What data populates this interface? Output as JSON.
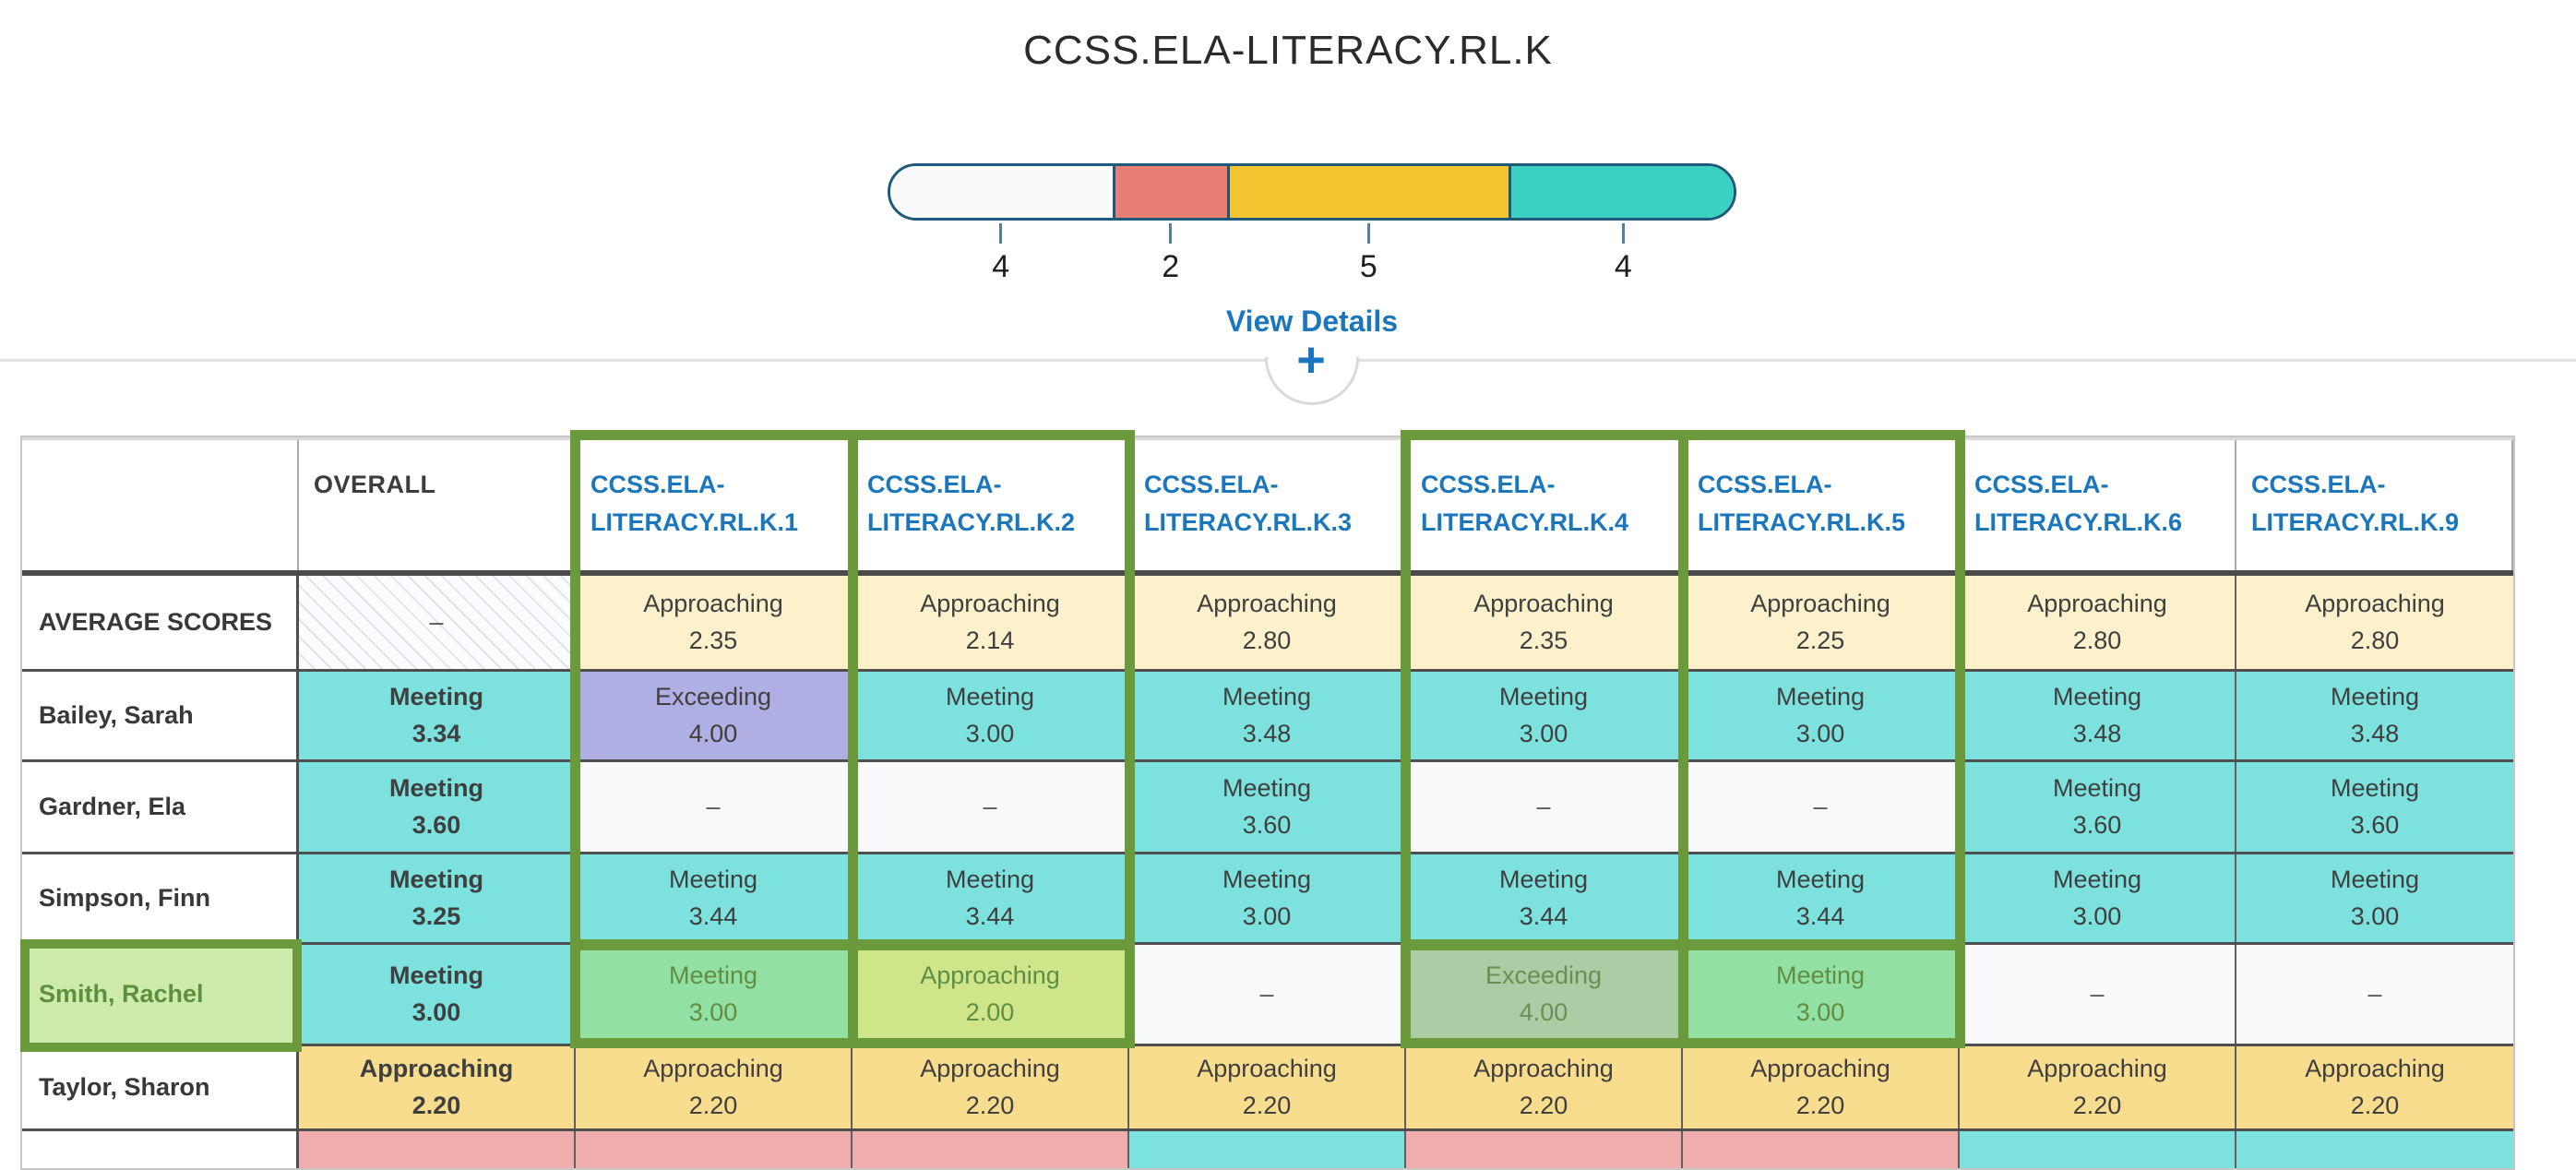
{
  "page": {
    "title": "CCSS.ELA-LITERACY.RL.K"
  },
  "summary_bar": {
    "total": 15,
    "segments": [
      {
        "name": "no-score",
        "count": 4,
        "label": "4",
        "color": "#f8fafc"
      },
      {
        "name": "not-meeting",
        "count": 2,
        "label": "2",
        "color": "#ea7c76"
      },
      {
        "name": "approaching",
        "count": 5,
        "label": "5",
        "color": "#f3c430"
      },
      {
        "name": "meeting",
        "count": 4,
        "label": "4",
        "color": "#3ad1c0"
      }
    ],
    "border_color": "#1b5a7d",
    "view_details_label": "View Details",
    "expand_button_label": "+"
  },
  "colors": {
    "link_blue": "#1b76bc",
    "highlight_green": "#6a9a3c",
    "cell_teal": "#7de2de",
    "cell_purple": "#b0afe3",
    "cell_light_yellow": "#fdf1cb",
    "cell_gold": "#f8dd8e",
    "cell_pink": "#efaead",
    "cell_empty": "#f7f9fb",
    "hl_meeting": "#93e0a4",
    "hl_approaching": "#cee58a",
    "hl_exceeding": "#abcda5"
  },
  "table": {
    "columns": [
      {
        "id": "name",
        "label": ""
      },
      {
        "id": "overall",
        "label": "OVERALL"
      },
      {
        "id": "k1",
        "label": "CCSS.ELA-LITERACY.RL.K.1",
        "highlighted": true
      },
      {
        "id": "k2",
        "label": "CCSS.ELA-LITERACY.RL.K.2",
        "highlighted": true
      },
      {
        "id": "k3",
        "label": "CCSS.ELA-LITERACY.RL.K.3"
      },
      {
        "id": "k4",
        "label": "CCSS.ELA-LITERACY.RL.K.4",
        "highlighted": true
      },
      {
        "id": "k5",
        "label": "CCSS.ELA-LITERACY.RL.K.5",
        "highlighted": true
      },
      {
        "id": "k6",
        "label": "CCSS.ELA-LITERACY.RL.K.6"
      },
      {
        "id": "k9",
        "label": "CCSS.ELA-LITERACY.RL.K.9"
      }
    ],
    "rows": [
      {
        "id": "average",
        "name": "AVERAGE SCORES",
        "cells": [
          {
            "variant": "hatched",
            "lines": [
              "–"
            ]
          },
          {
            "variant": "avg",
            "lines": [
              "Approaching",
              "2.35"
            ]
          },
          {
            "variant": "avg",
            "lines": [
              "Approaching",
              "2.14"
            ]
          },
          {
            "variant": "avg",
            "lines": [
              "Approaching",
              "2.80"
            ]
          },
          {
            "variant": "avg",
            "lines": [
              "Approaching",
              "2.35"
            ]
          },
          {
            "variant": "avg",
            "lines": [
              "Approaching",
              "2.25"
            ]
          },
          {
            "variant": "avg",
            "lines": [
              "Approaching",
              "2.80"
            ]
          },
          {
            "variant": "avg",
            "lines": [
              "Approaching",
              "2.80"
            ]
          }
        ]
      },
      {
        "id": "bailey",
        "name": "Bailey, Sarah",
        "cells": [
          {
            "variant": "teal",
            "bold": true,
            "lines": [
              "Meeting",
              "3.34"
            ]
          },
          {
            "variant": "purple",
            "lines": [
              "Exceeding",
              "4.00"
            ]
          },
          {
            "variant": "teal",
            "lines": [
              "Meeting",
              "3.00"
            ]
          },
          {
            "variant": "teal",
            "lines": [
              "Meeting",
              "3.48"
            ]
          },
          {
            "variant": "teal",
            "lines": [
              "Meeting",
              "3.00"
            ]
          },
          {
            "variant": "teal",
            "lines": [
              "Meeting",
              "3.00"
            ]
          },
          {
            "variant": "teal",
            "lines": [
              "Meeting",
              "3.48"
            ]
          },
          {
            "variant": "teal",
            "lines": [
              "Meeting",
              "3.48"
            ]
          }
        ]
      },
      {
        "id": "gardner",
        "name": "Gardner, Ela",
        "cells": [
          {
            "variant": "teal",
            "bold": true,
            "lines": [
              "Meeting",
              "3.60"
            ]
          },
          {
            "variant": "empty",
            "lines": [
              "–"
            ]
          },
          {
            "variant": "empty",
            "lines": [
              "–"
            ]
          },
          {
            "variant": "teal",
            "lines": [
              "Meeting",
              "3.60"
            ]
          },
          {
            "variant": "empty",
            "lines": [
              "–"
            ]
          },
          {
            "variant": "empty",
            "lines": [
              "–"
            ]
          },
          {
            "variant": "teal",
            "lines": [
              "Meeting",
              "3.60"
            ]
          },
          {
            "variant": "teal",
            "lines": [
              "Meeting",
              "3.60"
            ]
          }
        ]
      },
      {
        "id": "simpson",
        "name": "Simpson, Finn",
        "cells": [
          {
            "variant": "teal",
            "bold": true,
            "lines": [
              "Meeting",
              "3.25"
            ]
          },
          {
            "variant": "teal",
            "lines": [
              "Meeting",
              "3.44"
            ]
          },
          {
            "variant": "teal",
            "lines": [
              "Meeting",
              "3.44"
            ]
          },
          {
            "variant": "teal",
            "lines": [
              "Meeting",
              "3.00"
            ]
          },
          {
            "variant": "teal",
            "lines": [
              "Meeting",
              "3.44"
            ]
          },
          {
            "variant": "teal",
            "lines": [
              "Meeting",
              "3.44"
            ]
          },
          {
            "variant": "teal",
            "lines": [
              "Meeting",
              "3.00"
            ]
          },
          {
            "variant": "teal",
            "lines": [
              "Meeting",
              "3.00"
            ]
          }
        ]
      },
      {
        "id": "smith",
        "name": "Smith, Rachel",
        "highlighted": true,
        "cells": [
          {
            "variant": "teal",
            "bold": true,
            "lines": [
              "Meeting",
              "3.00"
            ]
          },
          {
            "variant": "hl-meeting",
            "lines": [
              "Meeting",
              "3.00"
            ]
          },
          {
            "variant": "hl-approaching",
            "lines": [
              "Approaching",
              "2.00"
            ]
          },
          {
            "variant": "empty",
            "lines": [
              "–"
            ]
          },
          {
            "variant": "hl-exceeding",
            "lines": [
              "Exceeding",
              "4.00"
            ]
          },
          {
            "variant": "hl-meeting",
            "lines": [
              "Meeting",
              "3.00"
            ]
          },
          {
            "variant": "empty",
            "lines": [
              "–"
            ]
          },
          {
            "variant": "empty",
            "lines": [
              "–"
            ]
          }
        ]
      },
      {
        "id": "taylor",
        "name": "Taylor, Sharon",
        "cells": [
          {
            "variant": "gold",
            "bold": true,
            "lines": [
              "Approaching",
              "2.20"
            ]
          },
          {
            "variant": "gold",
            "lines": [
              "Approaching",
              "2.20"
            ]
          },
          {
            "variant": "gold",
            "lines": [
              "Approaching",
              "2.20"
            ]
          },
          {
            "variant": "gold",
            "lines": [
              "Approaching",
              "2.20"
            ]
          },
          {
            "variant": "gold",
            "lines": [
              "Approaching",
              "2.20"
            ]
          },
          {
            "variant": "gold",
            "lines": [
              "Approaching",
              "2.20"
            ]
          },
          {
            "variant": "gold",
            "lines": [
              "Approaching",
              "2.20"
            ]
          },
          {
            "variant": "gold",
            "lines": [
              "Approaching",
              "2.20"
            ]
          }
        ]
      },
      {
        "id": "next-row",
        "name": "",
        "cells": [
          {
            "variant": "pink",
            "lines": []
          },
          {
            "variant": "pink",
            "lines": []
          },
          {
            "variant": "pink",
            "lines": []
          },
          {
            "variant": "teal",
            "lines": []
          },
          {
            "variant": "pink",
            "lines": []
          },
          {
            "variant": "pink",
            "lines": []
          },
          {
            "variant": "teal",
            "lines": []
          },
          {
            "variant": "teal",
            "lines": []
          }
        ]
      }
    ]
  }
}
